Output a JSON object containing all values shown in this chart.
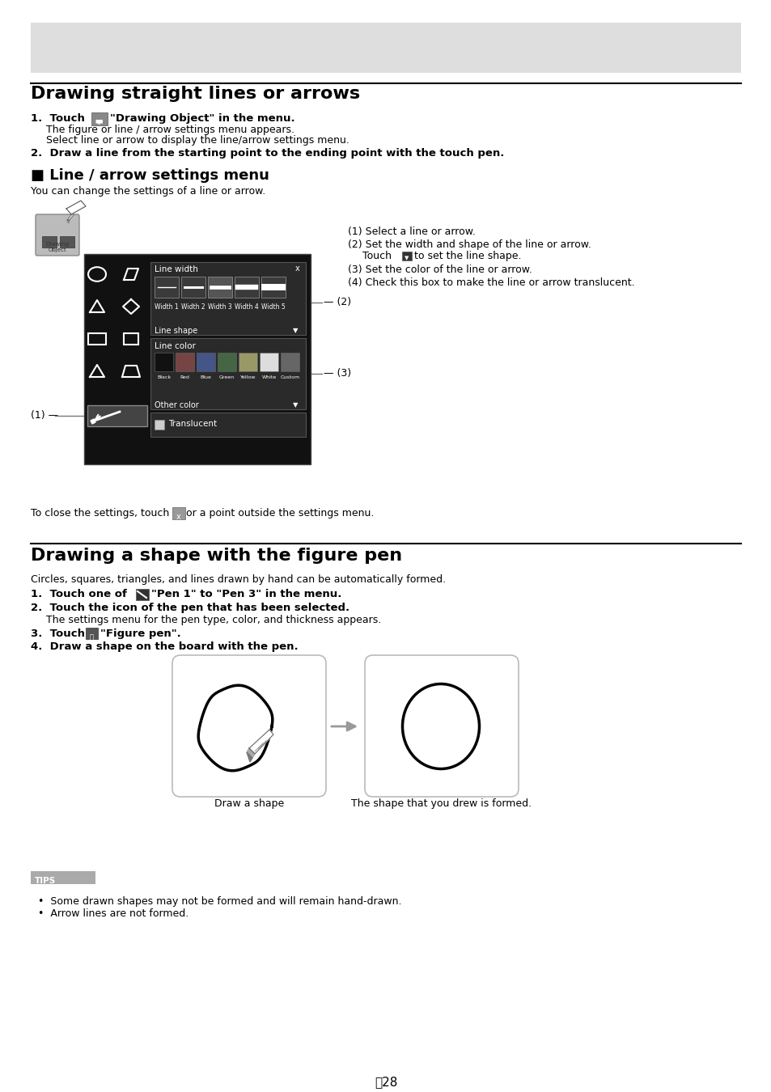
{
  "page_bg": "#ffffff",
  "header_bg": "#dedede",
  "title1": "Drawing straight lines or arrows",
  "title2": "Drawing a shape with the figure pen",
  "section1_header": "■ Line / arrow settings menu",
  "section1_sub": "You can change the settings of a line or arrow.",
  "tips_items": [
    "Some drawn shapes may not be formed and will remain hand-drawn.",
    "Arrow lines are not formed."
  ],
  "page_number": "28",
  "panel_bg": "#111111",
  "panel_dark": "#1a1a1a",
  "lw_panel_bg": "#2e2e2e",
  "lc_panel_bg": "#2e2e2e",
  "tr_panel_bg": "#2e2e2e",
  "color_swatches": [
    "#111111",
    "#774444",
    "#445588",
    "#446644",
    "#999966",
    "#dddddd",
    "#666666"
  ],
  "color_names": [
    "Black",
    "Red",
    "Blue",
    "Green",
    "Yellow",
    "White",
    "Custom"
  ]
}
